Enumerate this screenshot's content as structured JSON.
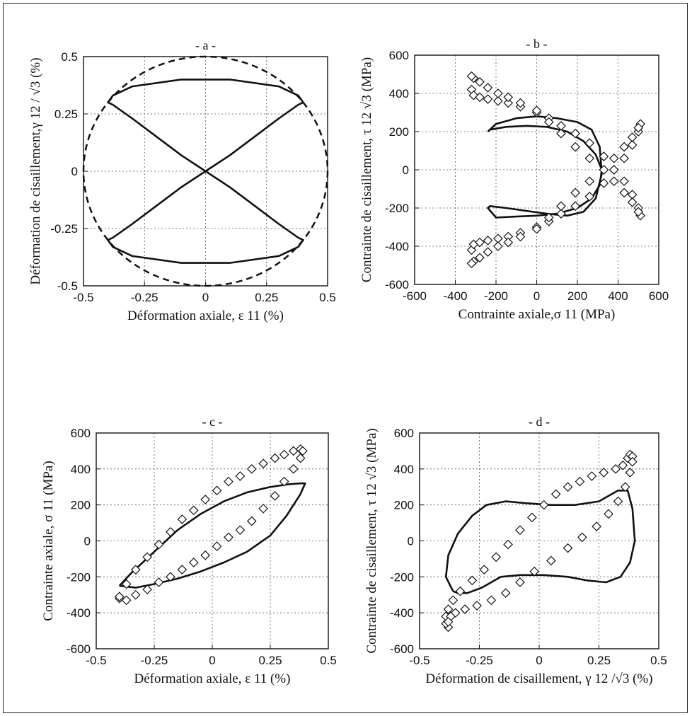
{
  "chart_data": [
    {
      "panel": "- a -",
      "type": "line",
      "xlabel": "Déformation axiale, ε 11 (%)",
      "ylabel": "Déformation de cisaillement,γ 12 / √3  (%)",
      "xlim": [
        -0.5,
        0.5
      ],
      "ylim": [
        -0.5,
        0.5
      ],
      "xticks": [
        "-0.5",
        "-0.25",
        "0",
        "0.25",
        "0.5"
      ],
      "yticks": [
        "-0.5",
        "-0.25",
        "0",
        "0.25",
        "0.5"
      ],
      "grid": true,
      "series": [
        {
          "style": "solid",
          "shape": "figure-eight (lemniscate)",
          "x": [
            0.0,
            0.1,
            0.2,
            0.3,
            0.38,
            0.4,
            0.38,
            0.3,
            0.1,
            0.0,
            -0.1,
            -0.3,
            -0.38,
            -0.4,
            -0.38,
            -0.3,
            -0.2,
            -0.1,
            0.0
          ],
          "y": [
            0.0,
            0.07,
            0.15,
            0.23,
            0.29,
            0.3,
            0.33,
            0.37,
            0.4,
            0.4,
            0.4,
            0.37,
            0.33,
            0.3,
            0.29,
            0.23,
            0.15,
            0.07,
            0.0
          ]
        },
        {
          "style": "dashed",
          "shape": "circle",
          "radius": 0.5
        }
      ]
    },
    {
      "panel": "- b -",
      "type": "line",
      "xlabel": "Contrainte axiale,σ 11  (MPa)",
      "ylabel": "Contrainte de cisaillement, τ 12 √3 (MPa)",
      "xlim": [
        -600,
        600
      ],
      "ylim": [
        -600,
        600
      ],
      "xticks": [
        "-600",
        "-400",
        "-200",
        "0",
        "200",
        "400",
        "600"
      ],
      "yticks": [
        "-600",
        "-400",
        "-200",
        "0",
        "200",
        "400",
        "600"
      ],
      "grid": true,
      "series": [
        {
          "style": "solid",
          "x": [
            -240,
            -230,
            -150,
            -50,
            50,
            150,
            230,
            290,
            320,
            310,
            270,
            200,
            100,
            0,
            -100,
            -200,
            -240,
            -230,
            -150,
            -50,
            50,
            150,
            230,
            290,
            320,
            310,
            270,
            200,
            100,
            0,
            -100,
            -200,
            -240
          ],
          "y": [
            200,
            210,
            225,
            230,
            225,
            200,
            150,
            80,
            0,
            -80,
            -150,
            -200,
            -230,
            -240,
            -245,
            -250,
            -200,
            -190,
            -200,
            -215,
            -230,
            -240,
            -220,
            -150,
            -20,
            120,
            210,
            250,
            270,
            280,
            270,
            240,
            200
          ]
        },
        {
          "style": "markers",
          "marker": "diamond",
          "x": [
            -320,
            -310,
            -280,
            -240,
            -190,
            -140,
            -80,
            0,
            60,
            120,
            190,
            260,
            330,
            380,
            430,
            470,
            500,
            510,
            500,
            470,
            430,
            380,
            330,
            260,
            190,
            120,
            60,
            0,
            -80,
            -140,
            -190,
            -240,
            -280,
            -310,
            -320
          ],
          "y": [
            420,
            390,
            380,
            370,
            360,
            350,
            330,
            300,
            270,
            230,
            190,
            140,
            70,
            0,
            -60,
            -130,
            -200,
            -240,
            -220,
            -170,
            -120,
            -60,
            0,
            60,
            120,
            190,
            250,
            310,
            350,
            380,
            400,
            430,
            460,
            480,
            490
          ]
        },
        {
          "style": "markers",
          "marker": "diamond",
          "x": [
            -320,
            -310,
            -280,
            -240,
            -190,
            -140,
            -80,
            0,
            60,
            120,
            190,
            260,
            330,
            380,
            430,
            470,
            500,
            510,
            500,
            470,
            430,
            380,
            330,
            260,
            190,
            120,
            60,
            0,
            -80,
            -140,
            -190,
            -240,
            -280,
            -310,
            -320
          ],
          "y": [
            -420,
            -390,
            -380,
            -370,
            -360,
            -350,
            -330,
            -300,
            -270,
            -230,
            -190,
            -140,
            -70,
            0,
            60,
            130,
            200,
            240,
            220,
            170,
            120,
            60,
            0,
            -60,
            -120,
            -190,
            -250,
            -310,
            -350,
            -380,
            -400,
            -430,
            -460,
            -480,
            -490
          ]
        }
      ]
    },
    {
      "panel": "- c -",
      "type": "line",
      "xlabel": "Déformation axiale, ε 11 (%)",
      "ylabel": "Contrainte axiale, σ 11  (MPa)",
      "xlim": [
        -0.5,
        0.5
      ],
      "ylim": [
        -600,
        600
      ],
      "xticks": [
        "-0.5",
        "-0.25",
        "0",
        "0.25",
        "0.5"
      ],
      "yticks": [
        "-600",
        "-400",
        "-200",
        "0",
        "200",
        "400",
        "600"
      ],
      "grid": true,
      "series": [
        {
          "style": "solid",
          "x": [
            -0.4,
            -0.35,
            -0.25,
            -0.15,
            -0.05,
            0.05,
            0.15,
            0.25,
            0.33,
            0.38,
            0.4,
            0.38,
            0.32,
            0.25,
            0.15,
            0.05,
            -0.05,
            -0.15,
            -0.25,
            -0.33,
            -0.4
          ],
          "y": [
            -250,
            -180,
            -60,
            60,
            150,
            220,
            270,
            300,
            315,
            320,
            320,
            260,
            140,
            30,
            -60,
            -120,
            -170,
            -210,
            -240,
            -260,
            -250
          ]
        },
        {
          "style": "markers",
          "marker": "diamond",
          "x": [
            -0.4,
            -0.37,
            -0.33,
            -0.28,
            -0.23,
            -0.18,
            -0.13,
            -0.08,
            -0.03,
            0.02,
            0.07,
            0.12,
            0.17,
            0.22,
            0.27,
            0.31,
            0.35,
            0.38,
            0.39,
            0.38,
            0.35,
            0.31,
            0.27,
            0.22,
            0.17,
            0.12,
            0.07,
            0.02,
            -0.03,
            -0.08,
            -0.13,
            -0.18,
            -0.23,
            -0.28,
            -0.33,
            -0.37,
            -0.4
          ],
          "y": [
            -320,
            -240,
            -160,
            -90,
            -20,
            50,
            120,
            170,
            230,
            280,
            330,
            360,
            400,
            430,
            460,
            480,
            500,
            510,
            500,
            460,
            400,
            330,
            250,
            180,
            110,
            60,
            20,
            -30,
            -80,
            -120,
            -160,
            -200,
            -230,
            -270,
            -300,
            -330,
            -310
          ]
        }
      ]
    },
    {
      "panel": "- d -",
      "type": "line",
      "xlabel": "Déformation de cisaillement, γ 12 /√3 (%)",
      "ylabel": "Contrainte de cisaillement, τ 12 √3 (MPa)",
      "xlim": [
        -0.5,
        0.5
      ],
      "ylim": [
        -600,
        600
      ],
      "xticks": [
        "-0.5",
        "-0.25",
        "0",
        "0.25",
        "0.5"
      ],
      "yticks": [
        "-600",
        "-400",
        "-200",
        "0",
        "200",
        "400",
        "600"
      ],
      "grid": true,
      "series": [
        {
          "style": "solid",
          "x": [
            -0.36,
            -0.39,
            -0.38,
            -0.34,
            -0.28,
            -0.22,
            -0.14,
            -0.06,
            0.05,
            0.15,
            0.25,
            0.33,
            0.37,
            0.39,
            0.4,
            0.38,
            0.34,
            0.28,
            0.2,
            0.12,
            0.02,
            -0.08,
            -0.16,
            -0.24,
            -0.3,
            -0.34,
            -0.36
          ],
          "y": [
            -280,
            -200,
            -80,
            40,
            140,
            200,
            220,
            210,
            200,
            200,
            220,
            280,
            280,
            180,
            0,
            -120,
            -200,
            -230,
            -220,
            -200,
            -190,
            -190,
            -200,
            -260,
            -290,
            -290,
            -280
          ]
        },
        {
          "style": "markers",
          "marker": "diamond",
          "x": [
            -0.38,
            -0.39,
            -0.39,
            -0.38,
            -0.36,
            -0.33,
            -0.28,
            -0.23,
            -0.18,
            -0.13,
            -0.08,
            -0.03,
            0.02,
            0.07,
            0.12,
            0.17,
            0.22,
            0.27,
            0.32,
            0.35,
            0.37,
            0.38,
            0.39,
            0.39,
            0.38,
            0.36,
            0.33,
            0.29,
            0.24,
            0.18,
            0.12,
            0.05,
            -0.02,
            -0.08,
            -0.14,
            -0.2,
            -0.26,
            -0.31,
            -0.35,
            -0.37,
            -0.38
          ],
          "y": [
            -480,
            -460,
            -420,
            -380,
            -330,
            -280,
            -220,
            -160,
            -90,
            -20,
            60,
            130,
            200,
            260,
            300,
            330,
            360,
            380,
            400,
            420,
            460,
            480,
            470,
            440,
            380,
            300,
            220,
            150,
            80,
            20,
            -40,
            -110,
            -170,
            -230,
            -290,
            -330,
            -360,
            -380,
            -400,
            -420,
            -450
          ]
        }
      ]
    }
  ]
}
